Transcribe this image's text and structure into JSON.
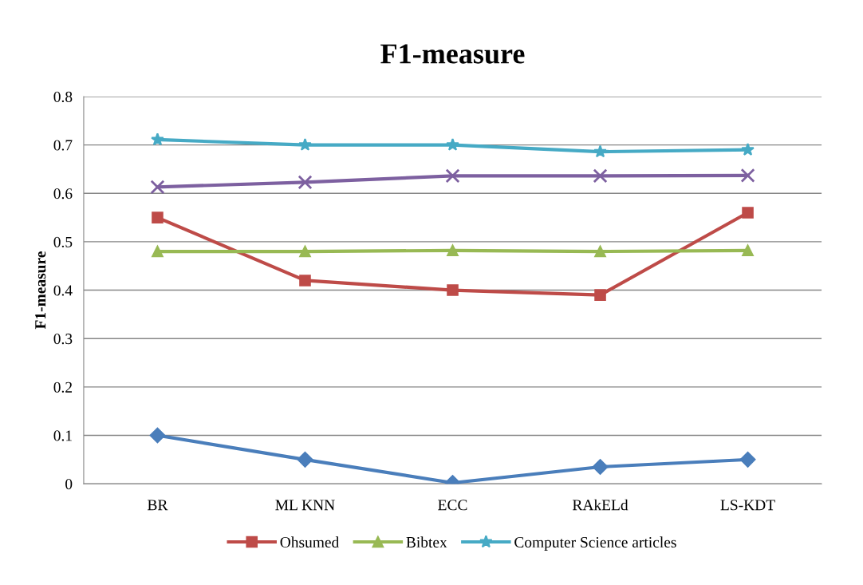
{
  "chart_data": {
    "type": "line",
    "title": "F1-measure",
    "ylabel": "F1-measure",
    "categories": [
      "BR",
      "ML KNN",
      "ECC",
      "RAkELd",
      "LS-KDT"
    ],
    "series": [
      {
        "color": "#4a7ebb",
        "marker": "diamond",
        "values": [
          0.1,
          0.05,
          0.002,
          0.035,
          0.05
        ]
      },
      {
        "name": "Ohsumed",
        "color": "#be4b48",
        "marker": "square",
        "values": [
          0.55,
          0.42,
          0.4,
          0.39,
          0.56
        ]
      },
      {
        "name": "Bibtex",
        "color": "#98b954",
        "marker": "triangle",
        "values": [
          0.48,
          0.48,
          0.482,
          0.48,
          0.482
        ]
      },
      {
        "color": "#7d60a0",
        "marker": "cross",
        "values": [
          0.613,
          0.623,
          0.636,
          0.636,
          0.637
        ]
      },
      {
        "name": "Computer Science articles",
        "color": "#46aac5",
        "marker": "star",
        "values": [
          0.711,
          0.7,
          0.7,
          0.686,
          0.69
        ]
      }
    ],
    "ylim": [
      0,
      0.8
    ],
    "yticks": [
      0,
      0.1,
      0.2,
      0.3,
      0.4,
      0.5,
      0.6,
      0.7,
      0.8
    ],
    "grid": "y",
    "legend": "bottom"
  }
}
